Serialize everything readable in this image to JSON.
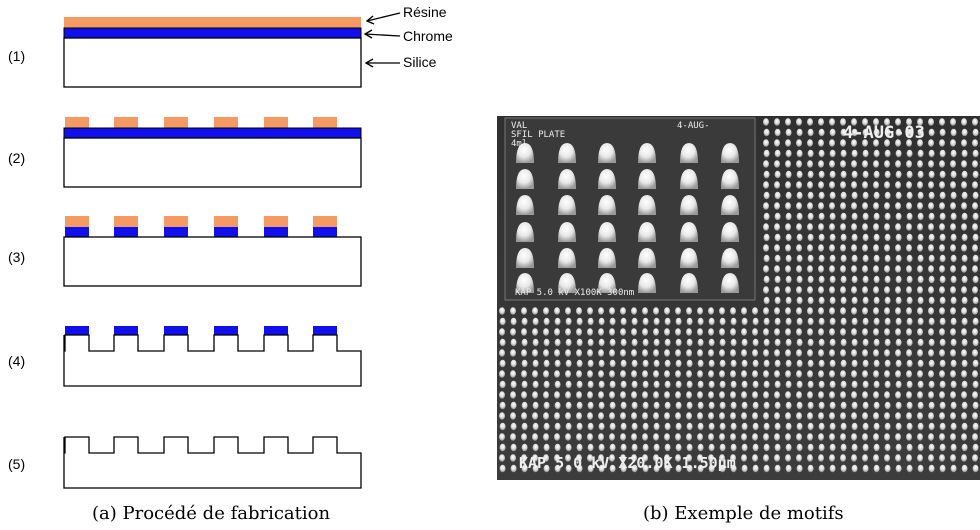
{
  "colors": {
    "resin": "#f59a62",
    "chrome": "#1010ee",
    "silica": "#ffffff",
    "outline": "#000000"
  },
  "layers": {
    "resin": "Résine",
    "chrome": "Chrome",
    "silica": "Silice"
  },
  "steps": [
    "(1)",
    "(2)",
    "(3)",
    "(4)",
    "(5)"
  ],
  "captions": {
    "a": "(a)  Procédé de fabrication",
    "b": "(b)  Exemple de motifs"
  },
  "micrograph": {
    "inset_top_left": [
      "VAL",
      "SFIL PLATE",
      "4ml"
    ],
    "inset_top_right": "4-AUG-",
    "inset_bottom": "KAP    5.0 kV  X100K  300nm",
    "date": "4-AUG-03",
    "footer": "KAP    5.0 kV  X20.0K  1.50µm"
  }
}
